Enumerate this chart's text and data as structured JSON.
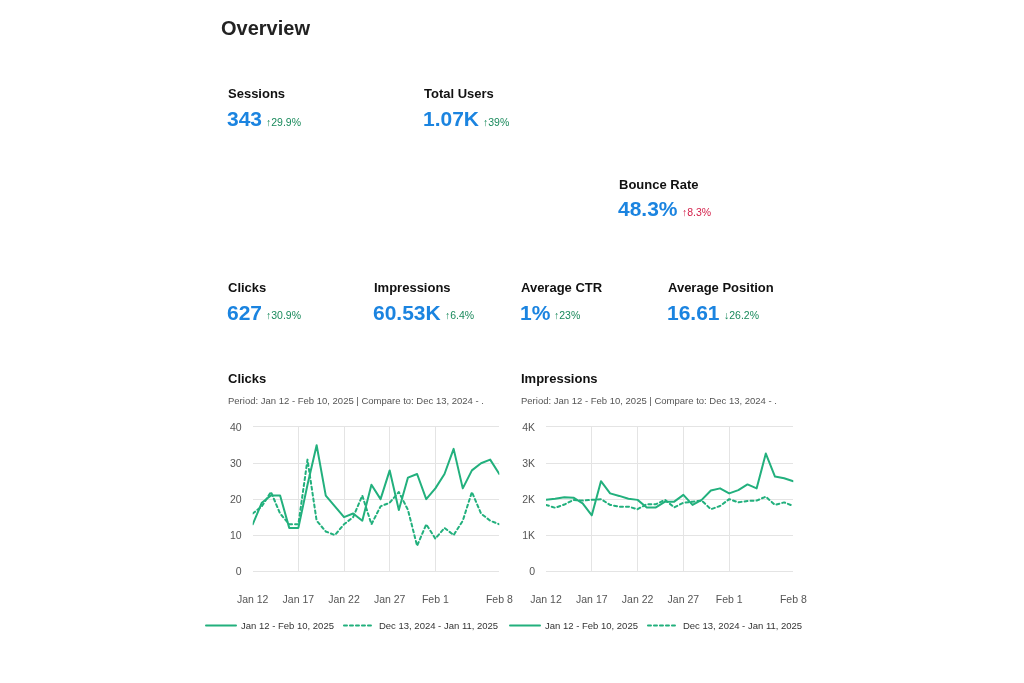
{
  "chart_data": [
    {
      "type": "other",
      "title": "Overview",
      "annotations": [
        "Sessions",
        "343",
        "↑29.9%",
        "Total Users",
        "1.07K",
        "↑39%",
        "Bounce Rate",
        "48.3%",
        "↑8.3%",
        "Clicks",
        "627",
        "↑30.9%",
        "Impressions",
        "60.53K",
        "↑6.4%",
        "Average CTR",
        "1%",
        "↑23%",
        "Average Position",
        "16.61",
        "↓26.2%"
      ]
    },
    {
      "type": "line",
      "title": "Clicks",
      "subtitle": "Period: Jan 12 - Feb 10, 2025 | Compare to: Dec 13, 2024 - .",
      "x": [
        "2025-01-12",
        "2025-01-13",
        "2025-01-14",
        "2025-01-15",
        "2025-01-16",
        "2025-01-17",
        "2025-01-18",
        "2025-01-19",
        "2025-01-20",
        "2025-01-21",
        "2025-01-22",
        "2025-01-23",
        "2025-01-24",
        "2025-01-25",
        "2025-01-26",
        "2025-01-27",
        "2025-01-28",
        "2025-01-29",
        "2025-01-30",
        "2025-01-31",
        "2025-02-01",
        "2025-02-02",
        "2025-02-03",
        "2025-02-04",
        "2025-02-05",
        "2025-02-06",
        "2025-02-07",
        "2025-02-08"
      ],
      "xlim": [
        "2025-01-12",
        "2025-02-08"
      ],
      "xticks": [
        {
          "value": "2025-01-12",
          "label": "Jan 12"
        },
        {
          "value": "2025-01-17",
          "label": "Jan 17"
        },
        {
          "value": "2025-01-22",
          "label": "Jan 22"
        },
        {
          "value": "2025-01-27",
          "label": "Jan 27"
        },
        {
          "value": "2025-02-01",
          "label": "Feb 1"
        },
        {
          "value": "2025-02-08",
          "label": "Feb 8"
        }
      ],
      "ylim": [
        0,
        40
      ],
      "yticks": [
        0,
        10,
        20,
        30,
        40
      ],
      "grid": true,
      "legend": "bottom",
      "series": [
        {
          "name": "Jan 12 - Feb 10, 2025",
          "color": "#22b07d",
          "line_style": "solid",
          "values": [
            13,
            19,
            21,
            21,
            12,
            12,
            24,
            35,
            21,
            18,
            15,
            16,
            14,
            24,
            20,
            28,
            17,
            26,
            27,
            20,
            23,
            27,
            34,
            23,
            28,
            30,
            31,
            27
          ]
        },
        {
          "name": "Dec 13, 2024 - Jan 11, 2025",
          "color": "#22b07d",
          "line_style": "dashed",
          "values": [
            16,
            18,
            22,
            16,
            13,
            13,
            31,
            14,
            11,
            10,
            13,
            15,
            21,
            13,
            18,
            19,
            22,
            17,
            7,
            13,
            9,
            12,
            10,
            14,
            22,
            16,
            14,
            13
          ]
        }
      ]
    },
    {
      "type": "line",
      "title": "Impressions",
      "subtitle": "Period: Jan 12 - Feb 10, 2025 | Compare to: Dec 13, 2024 - .",
      "x": [
        "2025-01-12",
        "2025-01-13",
        "2025-01-14",
        "2025-01-15",
        "2025-01-16",
        "2025-01-17",
        "2025-01-18",
        "2025-01-19",
        "2025-01-20",
        "2025-01-21",
        "2025-01-22",
        "2025-01-23",
        "2025-01-24",
        "2025-01-25",
        "2025-01-26",
        "2025-01-27",
        "2025-01-28",
        "2025-01-29",
        "2025-01-30",
        "2025-01-31",
        "2025-02-01",
        "2025-02-02",
        "2025-02-03",
        "2025-02-04",
        "2025-02-05",
        "2025-02-06",
        "2025-02-07",
        "2025-02-08"
      ],
      "xlim": [
        "2025-01-12",
        "2025-02-08"
      ],
      "xticks": [
        {
          "value": "2025-01-12",
          "label": "Jan 12"
        },
        {
          "value": "2025-01-17",
          "label": "Jan 17"
        },
        {
          "value": "2025-01-22",
          "label": "Jan 22"
        },
        {
          "value": "2025-01-27",
          "label": "Jan 27"
        },
        {
          "value": "2025-02-01",
          "label": "Feb 1"
        },
        {
          "value": "2025-02-08",
          "label": "Feb 8"
        }
      ],
      "ylim": [
        0,
        4000
      ],
      "yticks": [
        0,
        {
          "value": 1000,
          "label": "1K"
        },
        {
          "value": 2000,
          "label": "2K"
        },
        {
          "value": 3000,
          "label": "3K"
        },
        {
          "value": 4000,
          "label": "4K"
        }
      ],
      "grid": true,
      "legend": "bottom",
      "series": [
        {
          "name": "Jan 12 - Feb 10, 2025",
          "color": "#22b07d",
          "line_style": "solid",
          "values": [
            1980,
            2010,
            2050,
            2040,
            1880,
            1550,
            2500,
            2160,
            2090,
            2010,
            1980,
            1770,
            1770,
            1930,
            1930,
            2120,
            1840,
            1980,
            2240,
            2300,
            2160,
            2250,
            2410,
            2300,
            3270,
            2630,
            2580,
            2500
          ]
        },
        {
          "name": "Dec 13, 2024 - Jan 11, 2025",
          "color": "#22b07d",
          "line_style": "dashed",
          "values": [
            1840,
            1760,
            1850,
            1980,
            1960,
            1980,
            2000,
            1840,
            1790,
            1790,
            1720,
            1860,
            1860,
            1980,
            1770,
            1900,
            1930,
            1960,
            1720,
            1810,
            2000,
            1910,
            1950,
            1960,
            2070,
            1840,
            1910,
            1810
          ]
        }
      ]
    }
  ]
}
